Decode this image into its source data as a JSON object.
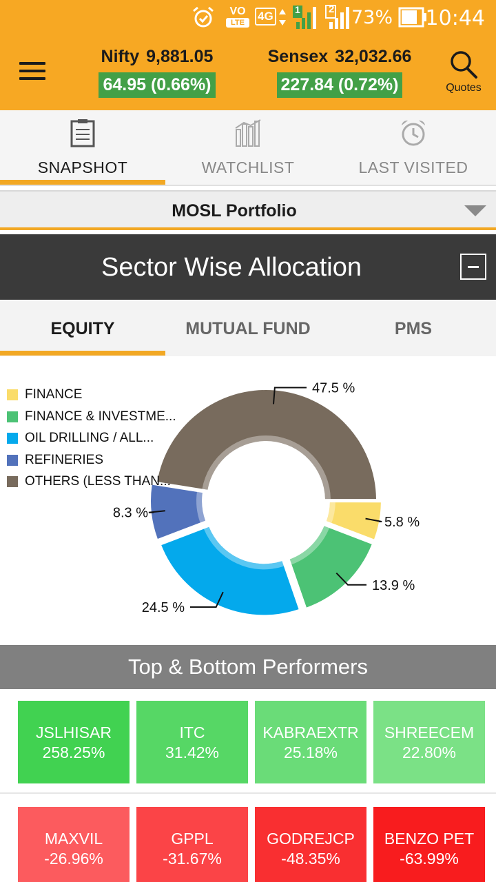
{
  "status_bar": {
    "battery": "73%",
    "time": "10:44",
    "network": "4G",
    "volte": "VO",
    "volte_sub": "LTE",
    "sim1": "1",
    "sim2": "2"
  },
  "header": {
    "menu_icon": "hamburger-icon",
    "nifty": {
      "name": "Nifty",
      "value": "9,881.05",
      "change": "64.95 (0.66%)"
    },
    "sensex": {
      "name": "Sensex",
      "value": "32,032.66",
      "change": "227.84 (0.72%)"
    },
    "quotes_label": "Quotes",
    "accent_color": "#f7a823",
    "change_color": "#43a047"
  },
  "top_tabs": [
    {
      "label": "SNAPSHOT",
      "icon": "clipboard-icon",
      "active": true
    },
    {
      "label": "WATCHLIST",
      "icon": "bar-chart-icon",
      "active": false
    },
    {
      "label": "LAST VISITED",
      "icon": "alarm-clock-icon",
      "active": false
    }
  ],
  "portfolio": {
    "selected": "MOSL Portfolio"
  },
  "sector_section": {
    "title": "Sector Wise Allocation",
    "tabs": [
      {
        "label": "EQUITY",
        "active": true
      },
      {
        "label": "MUTUAL FUND",
        "active": false
      },
      {
        "label": "PMS",
        "active": false
      }
    ]
  },
  "chart_data": {
    "type": "pie",
    "donut": true,
    "legend_position": "top-left",
    "categories": [
      "FINANCE",
      "FINANCE & INVESTME...",
      "OIL DRILLING / ALL...",
      "REFINERIES",
      "OTHERS (LESS THAN..."
    ],
    "values": [
      5.8,
      13.9,
      24.5,
      8.3,
      47.5
    ],
    "labels": [
      "5.8 %",
      "13.9 %",
      "24.5 %",
      "8.3 %",
      "47.5 %"
    ],
    "colors": [
      "#fadc6a",
      "#4cc275",
      "#04a9ec",
      "#5272bb",
      "#786b5d"
    ]
  },
  "performers": {
    "title": "Top & Bottom Performers",
    "top": [
      {
        "name": "JSLHISAR",
        "change": "258.25%",
        "color": "#41d251"
      },
      {
        "name": "ITC",
        "change": "31.42%",
        "color": "#56d765"
      },
      {
        "name": "KABRAEXTR",
        "change": "25.18%",
        "color": "#6adc78"
      },
      {
        "name": "SHREECEM",
        "change": "22.80%",
        "color": "#7be186"
      }
    ],
    "bottom": [
      {
        "name": "MAXVIL",
        "change": "-26.96%",
        "color": "#fc5b5e"
      },
      {
        "name": "GPPL",
        "change": "-31.67%",
        "color": "#fb4447"
      },
      {
        "name": "GODREJCP",
        "change": "-48.35%",
        "color": "#f92f31"
      },
      {
        "name": "BENZO PET",
        "change": "-63.99%",
        "color": "#f81c1e"
      }
    ]
  }
}
